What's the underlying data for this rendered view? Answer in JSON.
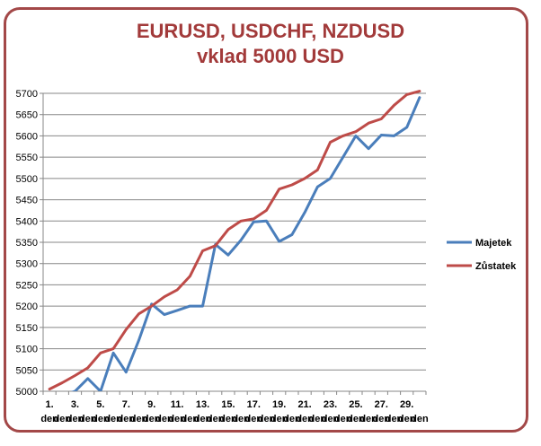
{
  "chart_data": {
    "type": "line",
    "title": "EURUSD, USDCHF, NZDUSD",
    "subtitle": "vklad 5000 USD",
    "ylim": [
      5000,
      5700
    ],
    "yticks": [
      5000,
      5050,
      5100,
      5150,
      5200,
      5250,
      5300,
      5350,
      5400,
      5450,
      5500,
      5550,
      5600,
      5650,
      5700
    ],
    "x": [
      1,
      2,
      3,
      4,
      5,
      6,
      7,
      8,
      9,
      10,
      11,
      12,
      13,
      14,
      15,
      16,
      17,
      18,
      19,
      20,
      21,
      22,
      23,
      24,
      25,
      26,
      27,
      28,
      29,
      30
    ],
    "xtick_labels": [
      {
        "pos": 1,
        "line1": "1.",
        "line2": "den"
      },
      {
        "pos": 2,
        "line1": "",
        "line2": "den"
      },
      {
        "pos": 3,
        "line1": "3.",
        "line2": "den"
      },
      {
        "pos": 4,
        "line1": "",
        "line2": "den"
      },
      {
        "pos": 5,
        "line1": "5.",
        "line2": "den"
      },
      {
        "pos": 6,
        "line1": "",
        "line2": "den"
      },
      {
        "pos": 7,
        "line1": "7.",
        "line2": "den"
      },
      {
        "pos": 8,
        "line1": "",
        "line2": "den"
      },
      {
        "pos": 9,
        "line1": "9.",
        "line2": "den"
      },
      {
        "pos": 10,
        "line1": "",
        "line2": "den"
      },
      {
        "pos": 11,
        "line1": "11.",
        "line2": "den"
      },
      {
        "pos": 12,
        "line1": "",
        "line2": "den"
      },
      {
        "pos": 13,
        "line1": "13.",
        "line2": "den"
      },
      {
        "pos": 14,
        "line1": "",
        "line2": "den"
      },
      {
        "pos": 15,
        "line1": "15.",
        "line2": "den"
      },
      {
        "pos": 16,
        "line1": "",
        "line2": "den"
      },
      {
        "pos": 17,
        "line1": "17.",
        "line2": "den"
      },
      {
        "pos": 18,
        "line1": "",
        "line2": "den"
      },
      {
        "pos": 19,
        "line1": "19.",
        "line2": "den"
      },
      {
        "pos": 20,
        "line1": "",
        "line2": "den"
      },
      {
        "pos": 21,
        "line1": "21.",
        "line2": "den"
      },
      {
        "pos": 22,
        "line1": "",
        "line2": "den"
      },
      {
        "pos": 23,
        "line1": "23.",
        "line2": "den"
      },
      {
        "pos": 24,
        "line1": "",
        "line2": "den"
      },
      {
        "pos": 25,
        "line1": "25.",
        "line2": "den"
      },
      {
        "pos": 26,
        "line1": "",
        "line2": "den"
      },
      {
        "pos": 27,
        "line1": "27.",
        "line2": "den"
      },
      {
        "pos": 28,
        "line1": "",
        "line2": "den"
      },
      {
        "pos": 29,
        "line1": "29.",
        "line2": "den"
      },
      {
        "pos": 30,
        "line1": "",
        "line2": "den"
      }
    ],
    "series": [
      {
        "name": "Majetek",
        "color": "#4a7ebb",
        "values": [
          4985,
          4990,
          5000,
          5030,
          5000,
          5090,
          5045,
          5120,
          5205,
          5180,
          5190,
          5200,
          5200,
          5345,
          5320,
          5355,
          5398,
          5400,
          5352,
          5368,
          5420,
          5480,
          5500,
          5550,
          5600,
          5570,
          5602,
          5600,
          5620,
          5690
        ]
      },
      {
        "name": "Zůstatek",
        "color": "#be4b48",
        "values": [
          5005,
          5020,
          5037,
          5055,
          5090,
          5100,
          5145,
          5182,
          5200,
          5222,
          5238,
          5270,
          5330,
          5342,
          5380,
          5400,
          5405,
          5425,
          5475,
          5485,
          5500,
          5520,
          5585,
          5600,
          5610,
          5630,
          5640,
          5672,
          5697,
          5705
        ]
      }
    ],
    "grid": "horizontal",
    "legend_position": "right"
  }
}
